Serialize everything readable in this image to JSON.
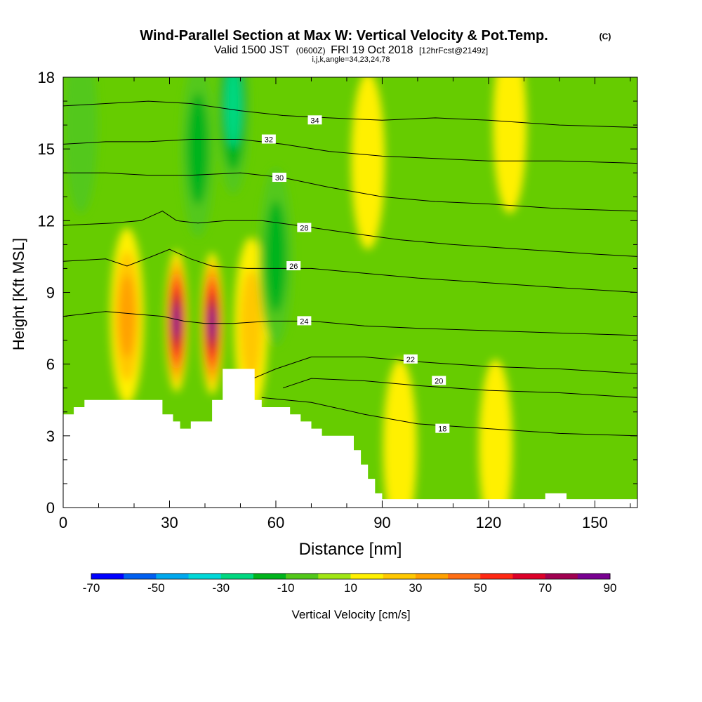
{
  "chart_data": {
    "type": "heatmap",
    "title": "Wind-Parallel Section at Max W: Vertical Velocity & Pot.Temp.",
    "title_mark": "(C)",
    "subtitle": {
      "valid": "Valid 1500 JST",
      "utc": "(0600Z)",
      "date": "FRI 19 Oct 2018",
      "fcst": "[12hrFcst@2149z]"
    },
    "indices_line": "i,j,k,angle=34,23,24,78",
    "xlabel": "Distance [nm]",
    "ylabel": "Height [Kft MSL]",
    "xlim": [
      0,
      162
    ],
    "ylim": [
      0,
      18
    ],
    "x_ticks": [
      "0",
      "30",
      "60",
      "90",
      "120",
      "150"
    ],
    "y_ticks": [
      "0",
      "3",
      "6",
      "9",
      "12",
      "15",
      "18"
    ],
    "colorbar": {
      "label": "Vertical Velocity [cm/s]",
      "tick_labels": [
        "-70",
        "-50",
        "-30",
        "-10",
        "10",
        "30",
        "50",
        "70",
        "90"
      ],
      "bounds": [
        -70,
        -60,
        -50,
        -40,
        -30,
        -20,
        -10,
        0,
        10,
        20,
        30,
        40,
        50,
        60,
        70,
        80,
        90
      ],
      "colors": [
        "#0000ff",
        "#005ff0",
        "#00a8ee",
        "#00d8d8",
        "#00d880",
        "#00b41c",
        "#52c81a",
        "#a0e614",
        "#fff000",
        "#ffc800",
        "#ffa000",
        "#ff6e14",
        "#ff2814",
        "#dc0028",
        "#a00050",
        "#780090"
      ]
    },
    "background_color": "#66cc00",
    "velocity_features": [
      {
        "kind": "updraft",
        "x": 32,
        "y": 7.8,
        "peak": 90
      },
      {
        "kind": "updraft",
        "x": 42,
        "y": 7.7,
        "peak": 90
      },
      {
        "kind": "updraft",
        "x": 18,
        "y": 8.0,
        "peak": 35
      },
      {
        "kind": "updraft",
        "x": 53,
        "y": 7.6,
        "peak": 30
      },
      {
        "kind": "updraft",
        "x": 86,
        "y": 14.5,
        "peak": 15
      },
      {
        "kind": "updraft",
        "x": 126,
        "y": 16.0,
        "peak": 15
      },
      {
        "kind": "updraft",
        "x": 95,
        "y": 2.5,
        "peak": 15
      },
      {
        "kind": "updraft",
        "x": 122,
        "y": 2.5,
        "peak": 15
      },
      {
        "kind": "downdraft",
        "x": 48,
        "y": 16.8,
        "peak": -30
      },
      {
        "kind": "downdraft",
        "x": 38,
        "y": 15.0,
        "peak": -15
      },
      {
        "kind": "downdraft",
        "x": 60,
        "y": 10.5,
        "peak": -15
      },
      {
        "kind": "downdraft",
        "x": 5,
        "y": 16.0,
        "peak": -12
      }
    ],
    "terrain": [
      [
        0,
        3.9
      ],
      [
        3,
        3.9
      ],
      [
        3,
        4.2
      ],
      [
        6,
        4.2
      ],
      [
        6,
        4.5
      ],
      [
        28,
        4.5
      ],
      [
        28,
        3.9
      ],
      [
        31,
        3.9
      ],
      [
        31,
        3.6
      ],
      [
        33,
        3.6
      ],
      [
        33,
        3.3
      ],
      [
        36,
        3.3
      ],
      [
        36,
        3.6
      ],
      [
        42,
        3.6
      ],
      [
        42,
        4.5
      ],
      [
        45,
        4.5
      ],
      [
        45,
        5.8
      ],
      [
        54,
        5.8
      ],
      [
        54,
        4.5
      ],
      [
        56,
        4.5
      ],
      [
        56,
        4.2
      ],
      [
        64,
        4.2
      ],
      [
        64,
        3.9
      ],
      [
        67,
        3.9
      ],
      [
        67,
        3.6
      ],
      [
        70,
        3.6
      ],
      [
        70,
        3.3
      ],
      [
        73,
        3.3
      ],
      [
        73,
        3.0
      ],
      [
        82,
        3.0
      ],
      [
        82,
        2.4
      ],
      [
        84,
        2.4
      ],
      [
        84,
        1.8
      ],
      [
        86,
        1.8
      ],
      [
        86,
        1.2
      ],
      [
        88,
        1.2
      ],
      [
        88,
        0.6
      ],
      [
        90,
        0.6
      ],
      [
        90,
        0.35
      ],
      [
        136,
        0.35
      ],
      [
        136,
        0.6
      ],
      [
        142,
        0.6
      ],
      [
        142,
        0.35
      ],
      [
        162,
        0.35
      ]
    ],
    "isentropes": [
      {
        "theta": 18,
        "label": "18",
        "label_at": [
          107,
          3.3
        ],
        "points": [
          [
            56,
            4.6
          ],
          [
            70,
            4.4
          ],
          [
            85,
            3.9
          ],
          [
            100,
            3.5
          ],
          [
            120,
            3.3
          ],
          [
            140,
            3.1
          ],
          [
            162,
            3.0
          ]
        ]
      },
      {
        "theta": 20,
        "label": "20",
        "label_at": [
          106,
          5.3
        ],
        "points": [
          [
            62,
            5.0
          ],
          [
            70,
            5.4
          ],
          [
            85,
            5.3
          ],
          [
            100,
            5.1
          ],
          [
            120,
            4.9
          ],
          [
            140,
            4.8
          ],
          [
            162,
            4.6
          ]
        ]
      },
      {
        "theta": 22,
        "label": "22",
        "label_at": [
          98,
          6.2
        ],
        "points": [
          [
            52,
            5.3
          ],
          [
            60,
            5.8
          ],
          [
            70,
            6.3
          ],
          [
            85,
            6.3
          ],
          [
            100,
            6.1
          ],
          [
            120,
            5.9
          ],
          [
            140,
            5.8
          ],
          [
            162,
            5.6
          ]
        ]
      },
      {
        "theta": 24,
        "label": "24",
        "label_at": [
          68,
          7.8
        ],
        "points": [
          [
            0,
            8.0
          ],
          [
            12,
            8.2
          ],
          [
            20,
            8.1
          ],
          [
            28,
            8.0
          ],
          [
            34,
            7.8
          ],
          [
            40,
            7.7
          ],
          [
            48,
            7.7
          ],
          [
            58,
            7.8
          ],
          [
            70,
            7.8
          ],
          [
            85,
            7.6
          ],
          [
            100,
            7.5
          ],
          [
            120,
            7.4
          ],
          [
            140,
            7.3
          ],
          [
            162,
            7.2
          ]
        ]
      },
      {
        "theta": 26,
        "label": "26",
        "label_at": [
          65,
          10.1
        ],
        "points": [
          [
            0,
            10.3
          ],
          [
            12,
            10.4
          ],
          [
            18,
            10.1
          ],
          [
            25,
            10.5
          ],
          [
            30,
            10.8
          ],
          [
            36,
            10.4
          ],
          [
            42,
            10.1
          ],
          [
            52,
            10.0
          ],
          [
            60,
            10.0
          ],
          [
            70,
            10.0
          ],
          [
            85,
            9.8
          ],
          [
            100,
            9.6
          ],
          [
            120,
            9.4
          ],
          [
            140,
            9.2
          ],
          [
            162,
            9.0
          ]
        ]
      },
      {
        "theta": 28,
        "label": "28",
        "label_at": [
          68,
          11.7
        ],
        "points": [
          [
            0,
            11.8
          ],
          [
            14,
            11.9
          ],
          [
            22,
            12.0
          ],
          [
            28,
            12.4
          ],
          [
            32,
            12.0
          ],
          [
            38,
            11.9
          ],
          [
            46,
            12.0
          ],
          [
            56,
            12.0
          ],
          [
            66,
            11.8
          ],
          [
            80,
            11.5
          ],
          [
            95,
            11.2
          ],
          [
            110,
            11.0
          ],
          [
            130,
            10.8
          ],
          [
            150,
            10.6
          ],
          [
            162,
            10.5
          ]
        ]
      },
      {
        "theta": 30,
        "label": "30",
        "label_at": [
          61,
          13.8
        ],
        "points": [
          [
            0,
            14.0
          ],
          [
            12,
            14.0
          ],
          [
            24,
            13.9
          ],
          [
            36,
            13.9
          ],
          [
            50,
            14.0
          ],
          [
            62,
            13.8
          ],
          [
            75,
            13.4
          ],
          [
            90,
            13.0
          ],
          [
            105,
            12.8
          ],
          [
            120,
            12.7
          ],
          [
            140,
            12.5
          ],
          [
            162,
            12.4
          ]
        ]
      },
      {
        "theta": 32,
        "label": "32",
        "label_at": [
          58,
          15.4
        ],
        "points": [
          [
            0,
            15.2
          ],
          [
            12,
            15.3
          ],
          [
            24,
            15.3
          ],
          [
            36,
            15.4
          ],
          [
            50,
            15.4
          ],
          [
            62,
            15.2
          ],
          [
            75,
            14.9
          ],
          [
            90,
            14.7
          ],
          [
            105,
            14.6
          ],
          [
            120,
            14.5
          ],
          [
            140,
            14.5
          ],
          [
            162,
            14.4
          ]
        ]
      },
      {
        "theta": 34,
        "label": "34",
        "label_at": [
          71,
          16.2
        ],
        "points": [
          [
            0,
            16.8
          ],
          [
            12,
            16.9
          ],
          [
            24,
            17.0
          ],
          [
            36,
            16.9
          ],
          [
            50,
            16.6
          ],
          [
            62,
            16.4
          ],
          [
            75,
            16.3
          ],
          [
            90,
            16.2
          ],
          [
            105,
            16.3
          ],
          [
            120,
            16.2
          ],
          [
            140,
            16.0
          ],
          [
            162,
            15.9
          ]
        ]
      }
    ]
  }
}
